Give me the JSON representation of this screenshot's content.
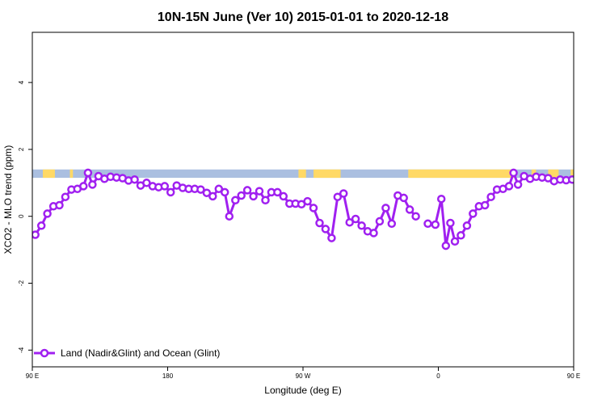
{
  "chart_data": {
    "type": "line",
    "title": "10N-15N June (Ver 10)   2015-01-01 to 2020-12-18",
    "xlabel": "Longitude (deg E)",
    "ylabel": "XCO2 - MLO trend (ppm)",
    "xlim": [
      90,
      450
    ],
    "ylim": [
      -4.5,
      5.5
    ],
    "x_ticks": [
      {
        "value": 90,
        "label": "90 E"
      },
      {
        "value": 180,
        "label": "180"
      },
      {
        "value": 270,
        "label": "90 W"
      },
      {
        "value": 360,
        "label": "0"
      },
      {
        "value": 450,
        "label": "90 E"
      },
      {
        "value": 540,
        "label": "180"
      }
    ],
    "y_ticks": [
      {
        "value": 4,
        "label": "4"
      },
      {
        "value": 2,
        "label": "2"
      },
      {
        "value": 0,
        "label": "0"
      },
      {
        "value": -2,
        "label": "-2"
      },
      {
        "value": -4,
        "label": "-4"
      }
    ],
    "colors": {
      "series": "#a020f0",
      "ocean_band": "#aabfe0",
      "land_band": "#ffd966"
    },
    "land_band": {
      "ymin": 1.15,
      "ymax": 1.4,
      "land_segments": [
        [
          97,
          105
        ],
        [
          115,
          117
        ],
        [
          267,
          272
        ],
        [
          277,
          295
        ],
        [
          340,
          411
        ],
        [
          422,
          425
        ],
        [
          433,
          440
        ],
        [
          448,
          456
        ],
        [
          491,
          495
        ]
      ]
    },
    "series": [
      {
        "name": "Land (Nadir&Glint) and Ocean (Glint)",
        "color": "#a020f0",
        "segments": [
          [
            [
              92,
              -0.55
            ],
            [
              96,
              -0.28
            ],
            [
              100,
              0.08
            ],
            [
              104,
              0.3
            ],
            [
              108,
              0.33
            ],
            [
              112,
              0.58
            ],
            [
              116,
              0.8
            ],
            [
              120,
              0.82
            ],
            [
              124,
              0.9
            ],
            [
              127,
              1.3
            ],
            [
              130,
              0.95
            ],
            [
              134,
              1.2
            ],
            [
              138,
              1.12
            ],
            [
              142,
              1.18
            ],
            [
              146,
              1.16
            ],
            [
              150,
              1.14
            ],
            [
              154,
              1.07
            ],
            [
              158,
              1.1
            ],
            [
              162,
              0.92
            ],
            [
              166,
              1.0
            ],
            [
              170,
              0.9
            ],
            [
              174,
              0.87
            ],
            [
              178,
              0.9
            ],
            [
              182,
              0.72
            ],
            [
              186,
              0.92
            ],
            [
              190,
              0.85
            ],
            [
              194,
              0.82
            ],
            [
              198,
              0.82
            ],
            [
              202,
              0.8
            ],
            [
              206,
              0.7
            ],
            [
              210,
              0.6
            ],
            [
              214,
              0.82
            ],
            [
              218,
              0.72
            ],
            [
              221,
              0.0
            ],
            [
              225,
              0.48
            ],
            [
              229,
              0.62
            ],
            [
              233,
              0.78
            ],
            [
              237,
              0.6
            ],
            [
              241,
              0.75
            ],
            [
              245,
              0.48
            ],
            [
              249,
              0.72
            ],
            [
              253,
              0.72
            ],
            [
              257,
              0.6
            ],
            [
              261,
              0.38
            ],
            [
              265,
              0.38
            ],
            [
              269,
              0.36
            ],
            [
              273,
              0.45
            ],
            [
              277,
              0.25
            ],
            [
              281,
              -0.2
            ],
            [
              285,
              -0.38
            ],
            [
              289,
              -0.65
            ],
            [
              293,
              0.58
            ],
            [
              297,
              0.68
            ],
            [
              301,
              -0.18
            ],
            [
              305,
              -0.08
            ],
            [
              309,
              -0.28
            ],
            [
              313,
              -0.45
            ],
            [
              317,
              -0.5
            ],
            [
              321,
              -0.15
            ],
            [
              325,
              0.25
            ],
            [
              329,
              -0.22
            ],
            [
              333,
              0.62
            ],
            [
              337,
              0.55
            ],
            [
              341,
              0.2
            ],
            [
              345,
              0.0
            ]
          ],
          [
            [
              353,
              -0.22
            ],
            [
              358,
              -0.25
            ],
            [
              362,
              0.52
            ],
            [
              365,
              -0.88
            ],
            [
              368,
              -0.2
            ],
            [
              371,
              -0.75
            ],
            [
              375,
              -0.57
            ],
            [
              379,
              -0.28
            ],
            [
              383,
              0.08
            ],
            [
              387,
              0.3
            ],
            [
              391,
              0.33
            ],
            [
              395,
              0.58
            ],
            [
              399,
              0.8
            ],
            [
              403,
              0.82
            ],
            [
              407,
              0.9
            ],
            [
              410,
              1.3
            ],
            [
              413,
              0.95
            ],
            [
              417,
              1.2
            ],
            [
              421,
              1.12
            ],
            [
              425,
              1.18
            ],
            [
              429,
              1.16
            ],
            [
              433,
              1.14
            ],
            [
              437,
              1.05
            ],
            [
              441,
              1.1
            ],
            [
              445,
              1.08
            ],
            [
              449,
              1.1
            ]
          ]
        ]
      }
    ]
  }
}
